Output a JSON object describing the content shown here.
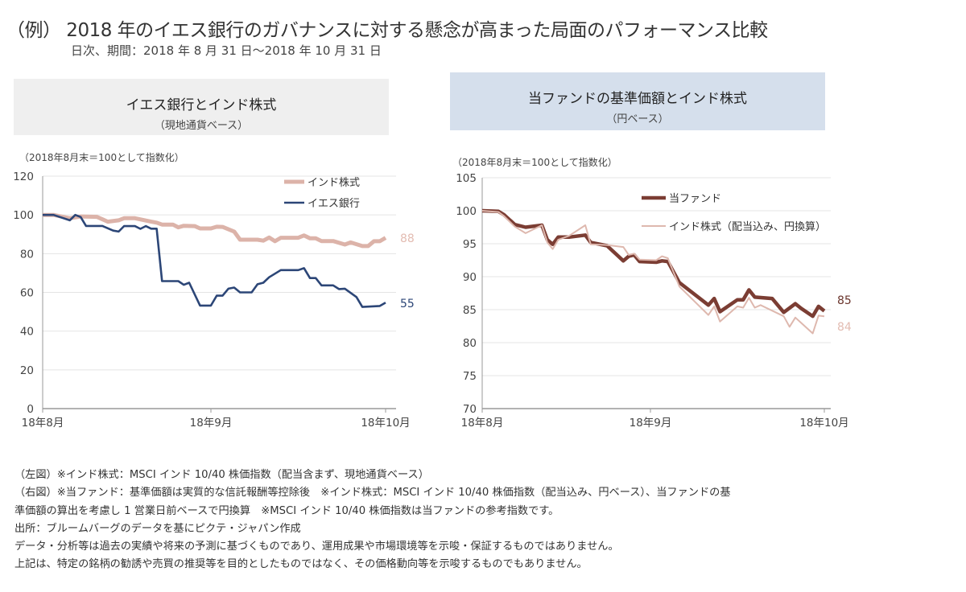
{
  "header": {
    "title": "（例） 2018 年のイエス銀行のガバナンスに対する懸念が高まった局面のパフォーマンス比較",
    "subtitle": "日次、期間：2018 年 8 月 31 日～2018 年 10 月 31 日"
  },
  "colors": {
    "india_left": "#dcb3a9",
    "yes_bank": "#2c4677",
    "fund": "#7b3d33",
    "india_right": "#deb8ae",
    "left_header_bg": "#efefef",
    "right_header_bg": "#d5dfec"
  },
  "chart_data": [
    {
      "type": "line",
      "title": "イエス銀行とインド株式",
      "subtitle": "（現地通貨ベース）",
      "note": "（2018年8月末＝100として指数化）",
      "ylim": [
        0,
        120
      ],
      "yticks": [
        "0",
        "20",
        "40",
        "60",
        "80",
        "100",
        "120"
      ],
      "xticks": [
        {
          "date": "2018-08-01",
          "label": "18年8月"
        },
        {
          "date": "2018-09-01",
          "label": "18年9月"
        },
        {
          "date": "2018-10-01",
          "label": "18年10月"
        }
      ],
      "grid": true,
      "legend": "top-right",
      "series": [
        {
          "name": "インド株式",
          "end_label": "88",
          "points": [
            [
              "2018-08-01",
              100
            ],
            [
              "2018-08-03",
              100
            ],
            [
              "2018-08-06",
              98.3
            ],
            [
              "2018-08-08",
              99.2
            ],
            [
              "2018-08-11",
              99
            ],
            [
              "2018-08-13",
              96.5
            ],
            [
              "2018-08-15",
              97.2
            ],
            [
              "2018-08-16",
              98.3
            ],
            [
              "2018-08-18",
              98.3
            ],
            [
              "2018-08-21",
              96.5
            ],
            [
              "2018-08-22",
              96
            ],
            [
              "2018-08-23",
              95
            ],
            [
              "2018-08-25",
              95
            ],
            [
              "2018-08-26",
              93.6
            ],
            [
              "2018-08-27",
              94.4
            ],
            [
              "2018-08-29",
              94.2
            ],
            [
              "2018-08-30",
              93
            ],
            [
              "2018-09-01",
              93
            ],
            [
              "2018-09-02",
              93.9
            ],
            [
              "2018-09-03",
              93.8
            ],
            [
              "2018-09-05",
              91.4
            ],
            [
              "2018-09-06",
              87.2
            ],
            [
              "2018-09-09",
              87.2
            ],
            [
              "2018-09-10",
              86.7
            ],
            [
              "2018-09-11",
              88.3
            ],
            [
              "2018-09-12",
              86.4
            ],
            [
              "2018-09-13",
              88.2
            ],
            [
              "2018-09-16",
              88.2
            ],
            [
              "2018-09-17",
              89.4
            ],
            [
              "2018-09-18",
              87.9
            ],
            [
              "2018-09-19",
              87.9
            ],
            [
              "2018-09-20",
              86.5
            ],
            [
              "2018-09-22",
              86.5
            ],
            [
              "2018-09-24",
              84.7
            ],
            [
              "2018-09-25",
              85.8
            ],
            [
              "2018-09-27",
              83.9
            ],
            [
              "2018-09-28",
              83.9
            ],
            [
              "2018-09-29",
              86.4
            ],
            [
              "2018-09-30",
              86.4
            ],
            [
              "2018-10-01",
              88.2
            ]
          ]
        },
        {
          "name": "イエス銀行",
          "end_label": "55",
          "points": [
            [
              "2018-08-01",
              100
            ],
            [
              "2018-08-03",
              100
            ],
            [
              "2018-08-06",
              97.2
            ],
            [
              "2018-08-07",
              100
            ],
            [
              "2018-08-08",
              98.9
            ],
            [
              "2018-08-09",
              94.3
            ],
            [
              "2018-08-12",
              94.3
            ],
            [
              "2018-08-14",
              91.9
            ],
            [
              "2018-08-15",
              91.4
            ],
            [
              "2018-08-16",
              94.2
            ],
            [
              "2018-08-18",
              94.2
            ],
            [
              "2018-08-19",
              92.8
            ],
            [
              "2018-08-20",
              94.2
            ],
            [
              "2018-08-21",
              92.9
            ],
            [
              "2018-08-22",
              92.9
            ],
            [
              "2018-08-23",
              65.8
            ],
            [
              "2018-08-26",
              65.8
            ],
            [
              "2018-08-27",
              63.9
            ],
            [
              "2018-08-28",
              65
            ],
            [
              "2018-08-30",
              53.2
            ],
            [
              "2018-09-01",
              53.2
            ],
            [
              "2018-09-02",
              58.3
            ],
            [
              "2018-09-03",
              58.3
            ],
            [
              "2018-09-04",
              61.9
            ],
            [
              "2018-09-05",
              62.5
            ],
            [
              "2018-09-06",
              60
            ],
            [
              "2018-09-08",
              60
            ],
            [
              "2018-09-09",
              64.2
            ],
            [
              "2018-09-10",
              65
            ],
            [
              "2018-09-11",
              67.8
            ],
            [
              "2018-09-13",
              71.5
            ],
            [
              "2018-09-16",
              71.5
            ],
            [
              "2018-09-17",
              72.5
            ],
            [
              "2018-09-18",
              67.4
            ],
            [
              "2018-09-19",
              67.4
            ],
            [
              "2018-09-20",
              63.6
            ],
            [
              "2018-09-22",
              63.6
            ],
            [
              "2018-09-23",
              61.7
            ],
            [
              "2018-09-24",
              61.9
            ],
            [
              "2018-09-26",
              57.6
            ],
            [
              "2018-09-27",
              52.5
            ],
            [
              "2018-09-29",
              52.8
            ],
            [
              "2018-09-30",
              53
            ],
            [
              "2018-10-01",
              54.7
            ]
          ]
        }
      ]
    },
    {
      "type": "line",
      "title": "当ファンドの基準価額とインド株式",
      "subtitle": "（円ベース）",
      "note": "（2018年8月末＝100として指数化）",
      "ylim": [
        70,
        105
      ],
      "yticks": [
        "70",
        "75",
        "80",
        "85",
        "90",
        "95",
        "100",
        "105"
      ],
      "xticks": [
        {
          "date": "2018-08-01",
          "label": "18年8月"
        },
        {
          "date": "2018-09-01",
          "label": "18年9月"
        },
        {
          "date": "2018-10-01",
          "label": "18年10月"
        }
      ],
      "grid": true,
      "legend": "top-right",
      "series": [
        {
          "name": "当ファンド",
          "end_label": "85",
          "points": [
            [
              "2018-08-01",
              100
            ],
            [
              "2018-08-04",
              99.9
            ],
            [
              "2018-08-05",
              99.4
            ],
            [
              "2018-08-07",
              97.9
            ],
            [
              "2018-08-09",
              97.5
            ],
            [
              "2018-08-12",
              97.8
            ],
            [
              "2018-08-13",
              95.6
            ],
            [
              "2018-08-14",
              94.9
            ],
            [
              "2018-08-15",
              96
            ],
            [
              "2018-08-17",
              96
            ],
            [
              "2018-08-20",
              96.3
            ],
            [
              "2018-08-21",
              95.2
            ],
            [
              "2018-08-24",
              94.7
            ],
            [
              "2018-08-27",
              92.4
            ],
            [
              "2018-08-28",
              93.1
            ],
            [
              "2018-08-29",
              93.3
            ],
            [
              "2018-08-30",
              92.3
            ],
            [
              "2018-09-02",
              92.2
            ],
            [
              "2018-09-03",
              92.4
            ],
            [
              "2018-09-04",
              92.3
            ],
            [
              "2018-09-06",
              89.1
            ],
            [
              "2018-09-11",
              85.7
            ],
            [
              "2018-09-12",
              86.7
            ],
            [
              "2018-09-13",
              84.7
            ],
            [
              "2018-09-16",
              86.5
            ],
            [
              "2018-09-17",
              86.5
            ],
            [
              "2018-09-18",
              88
            ],
            [
              "2018-09-19",
              86.9
            ],
            [
              "2018-09-22",
              86.7
            ],
            [
              "2018-09-24",
              84.6
            ],
            [
              "2018-09-26",
              85.9
            ],
            [
              "2018-09-27",
              85.2
            ],
            [
              "2018-09-29",
              84
            ],
            [
              "2018-09-30",
              85.5
            ],
            [
              "2018-10-01",
              84.8
            ]
          ]
        },
        {
          "name": "インド株式（配当込み、円換算）",
          "end_label": "84",
          "points": [
            [
              "2018-08-01",
              100
            ],
            [
              "2018-08-04",
              99.8
            ],
            [
              "2018-08-05",
              99.2
            ],
            [
              "2018-08-07",
              97.6
            ],
            [
              "2018-08-09",
              96.6
            ],
            [
              "2018-08-12",
              97.8
            ],
            [
              "2018-08-13",
              95.2
            ],
            [
              "2018-08-14",
              94.2
            ],
            [
              "2018-08-15",
              95.6
            ],
            [
              "2018-08-17",
              96.2
            ],
            [
              "2018-08-20",
              97.8
            ],
            [
              "2018-08-21",
              94.9
            ],
            [
              "2018-08-24",
              94.8
            ],
            [
              "2018-08-27",
              94.5
            ],
            [
              "2018-08-28",
              93.3
            ],
            [
              "2018-08-29",
              93.5
            ],
            [
              "2018-08-30",
              92.6
            ],
            [
              "2018-09-02",
              92.5
            ],
            [
              "2018-09-03",
              93.1
            ],
            [
              "2018-09-04",
              92.8
            ],
            [
              "2018-09-06",
              88.5
            ],
            [
              "2018-09-11",
              84.2
            ],
            [
              "2018-09-12",
              85.5
            ],
            [
              "2018-09-13",
              83.2
            ],
            [
              "2018-09-16",
              85.5
            ],
            [
              "2018-09-17",
              85.3
            ],
            [
              "2018-09-18",
              86.8
            ],
            [
              "2018-09-19",
              85.3
            ],
            [
              "2018-09-20",
              85.7
            ],
            [
              "2018-09-24",
              84
            ],
            [
              "2018-09-25",
              82.4
            ],
            [
              "2018-09-26",
              83.8
            ],
            [
              "2018-09-27",
              83
            ],
            [
              "2018-09-29",
              81.4
            ],
            [
              "2018-09-30",
              84.1
            ],
            [
              "2018-10-01",
              84
            ]
          ]
        }
      ]
    }
  ],
  "footnotes": [
    "（左図）※インド株式：MSCI インド 10/40 株価指数（配当含まず、現地通貨ベース）",
    "（右図）※当ファンド：基準価額は実質的な信託報酬等控除後　※インド株式：MSCI インド 10/40 株価指数（配当込み、円ベース）、当ファンドの基",
    "準価額の算出を考慮し 1 営業日前ベースで円換算　※MSCI インド 10/40 株価指数は当ファンドの参考指数です。",
    "出所：ブルームバーグのデータを基にピクテ・ジャパン作成",
    "データ・分析等は過去の実績や将来の予測に基づくものであり、運用成果や市場環境等を示唆・保証するものではありません。",
    "上記は、特定の銘柄の勧誘や売買の推奨等を目的としたものではなく、その価格動向等を示唆するものでもありません。"
  ]
}
